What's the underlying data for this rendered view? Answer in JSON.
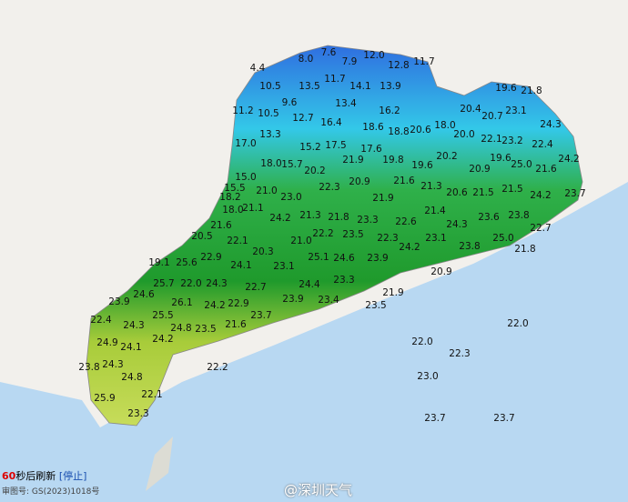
{
  "map": {
    "labels": [
      "4.4",
      "8.0",
      "7.6",
      "7.9",
      "12.0",
      "12.8",
      "11.7",
      "10.5",
      "13.5",
      "11.7",
      "14.1",
      "13.9",
      "9.6",
      "11.2",
      "10.5",
      "12.7",
      "16.4",
      "13.4",
      "16.2",
      "19.6",
      "21.8",
      "13.3",
      "18.6",
      "18.8",
      "20.6",
      "18.0",
      "20.4",
      "20.7",
      "23.1",
      "24.3",
      "17.0",
      "15.2",
      "17.5",
      "17.6",
      "20.0",
      "22.1",
      "23.2",
      "22.4",
      "18.0",
      "15.7",
      "21.9",
      "19.8",
      "19.6",
      "20.2",
      "20.9",
      "19.6",
      "25.0",
      "24.2",
      "21.6",
      "15.0",
      "20.2",
      "20.9",
      "21.6",
      "21.3",
      "20.6",
      "21.5",
      "21.5",
      "24.2",
      "23.7",
      "15.5",
      "18.2",
      "21.0",
      "23.0",
      "22.3",
      "21.9",
      "18.0",
      "21.1",
      "21.6",
      "24.2",
      "21.3",
      "21.8",
      "23.3",
      "22.6",
      "21.4",
      "24.3",
      "23.6",
      "23.8",
      "22.7",
      "20.5",
      "22.1",
      "21.0",
      "22.2",
      "23.5",
      "22.3",
      "23.1",
      "24.2",
      "25.0",
      "23.8",
      "21.8",
      "19.1",
      "25.6",
      "22.9",
      "20.3",
      "24.1",
      "23.1",
      "25.1",
      "24.6",
      "23.9",
      "20.9",
      "25.7",
      "22.0",
      "24.3",
      "22.7",
      "24.4",
      "23.3",
      "24.6",
      "26.1",
      "24.2",
      "22.9",
      "23.9",
      "23.4",
      "21.9",
      "23.9",
      "23.5",
      "22.4",
      "25.5",
      "23.7",
      "24.3",
      "24.8",
      "23.5",
      "21.6",
      "22.0",
      "24.2",
      "24.9",
      "24.1",
      "22.0",
      "22.3",
      "23.8",
      "24.3",
      "22.2",
      "24.8",
      "23.0",
      "25.9",
      "22.1",
      "23.3",
      "23.7",
      "23.7"
    ]
  },
  "footer": {
    "refresh_seconds": "60",
    "refresh_text": "秒后刷新",
    "stop": "[停止]",
    "license": "审图号: GS(2023)1018号",
    "watermark": "@深圳天气"
  }
}
